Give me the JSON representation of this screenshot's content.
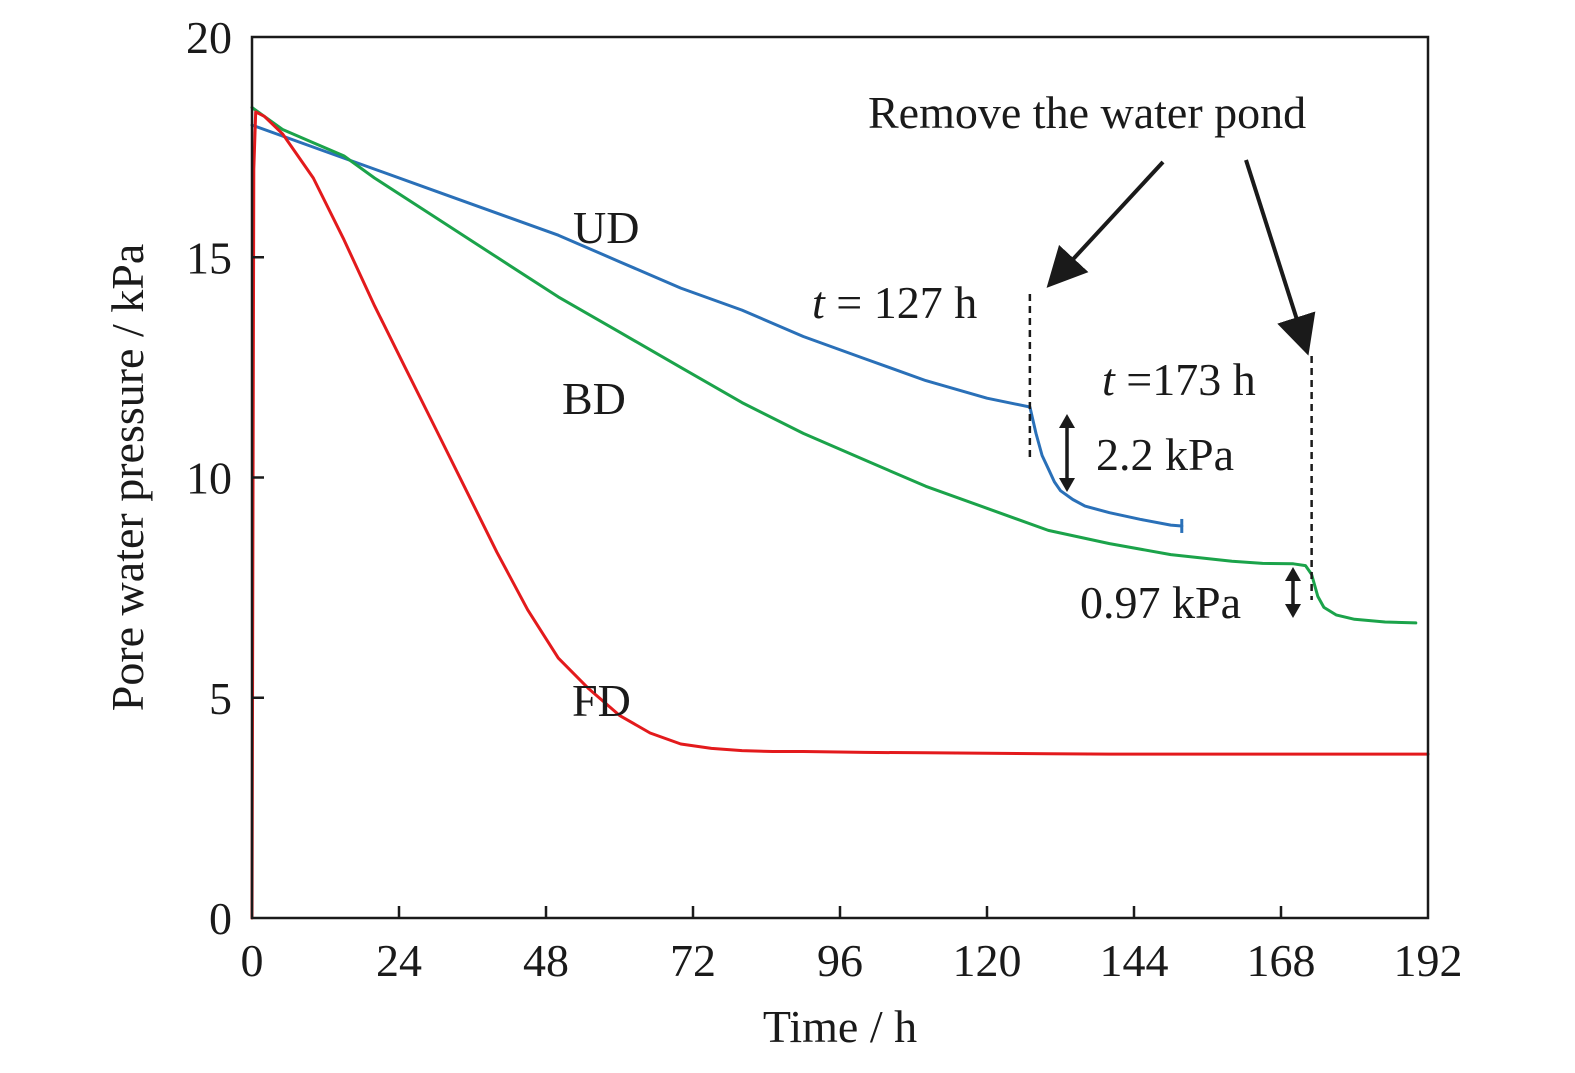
{
  "chart_data": {
    "type": "line",
    "xlabel": "Time / h",
    "ylabel": "Pore water pressure / kPa",
    "xlim": [
      0,
      192
    ],
    "ylim": [
      0,
      20
    ],
    "x_ticks": [
      "0",
      "24",
      "48",
      "72",
      "96",
      "120",
      "144",
      "168",
      "192"
    ],
    "y_ticks": [
      "0",
      "5",
      "10",
      "15",
      "20"
    ],
    "grid": false,
    "legend": "none",
    "series": [
      {
        "name": "UD",
        "color": "#2a70b8",
        "x": [
          0,
          10,
          20,
          30,
          40,
          50,
          60,
          70,
          80,
          90,
          100,
          110,
          120,
          127,
          128,
          129,
          130,
          131,
          132,
          134,
          136,
          140,
          145,
          150,
          151.8
        ],
        "y": [
          18.0,
          17.5,
          17.0,
          16.5,
          16.0,
          15.5,
          14.9,
          14.3,
          13.8,
          13.2,
          12.7,
          12.2,
          11.8,
          11.6,
          11.0,
          10.5,
          10.2,
          9.9,
          9.7,
          9.5,
          9.35,
          9.2,
          9.05,
          8.92,
          8.9
        ]
      },
      {
        "name": "BD",
        "color": "#1ba34a",
        "x": [
          0,
          5,
          10,
          15,
          20,
          30,
          40,
          50,
          60,
          70,
          80,
          90,
          100,
          110,
          120,
          130,
          140,
          150,
          160,
          165,
          170,
          172,
          173,
          174,
          175,
          177,
          180,
          185,
          190
        ],
        "y": [
          18.4,
          17.9,
          17.6,
          17.3,
          16.8,
          15.9,
          15.0,
          14.1,
          13.3,
          12.5,
          11.7,
          11.0,
          10.4,
          9.8,
          9.3,
          8.8,
          8.5,
          8.25,
          8.1,
          8.05,
          8.04,
          8.0,
          7.8,
          7.3,
          7.05,
          6.88,
          6.78,
          6.72,
          6.7
        ]
      },
      {
        "name": "FD",
        "color": "#e31a1c",
        "x": [
          0,
          0.3,
          0.6,
          2,
          5,
          10,
          15,
          20,
          25,
          30,
          35,
          40,
          45,
          50,
          55,
          60,
          65,
          70,
          75,
          80,
          85,
          90,
          100,
          110,
          120,
          130,
          140,
          150,
          160,
          170,
          180,
          192
        ],
        "y": [
          0.0,
          17.0,
          18.3,
          18.2,
          17.8,
          16.8,
          15.4,
          13.9,
          12.5,
          11.1,
          9.7,
          8.3,
          7.0,
          5.9,
          5.2,
          4.6,
          4.2,
          3.95,
          3.85,
          3.8,
          3.78,
          3.78,
          3.76,
          3.75,
          3.74,
          3.73,
          3.72,
          3.72,
          3.72,
          3.72,
          3.72,
          3.72
        ]
      }
    ],
    "annotations": {
      "remove_pond": "Remove the water pond",
      "t127_italic": "t",
      "t127_rest": " = 127 h",
      "t173_italic": "t",
      "t173_rest": " =173 h",
      "drop_ud": "2.2 kPa",
      "drop_bd": "0.97 kPa",
      "t127_value": 127,
      "t173_value": 173
    }
  }
}
